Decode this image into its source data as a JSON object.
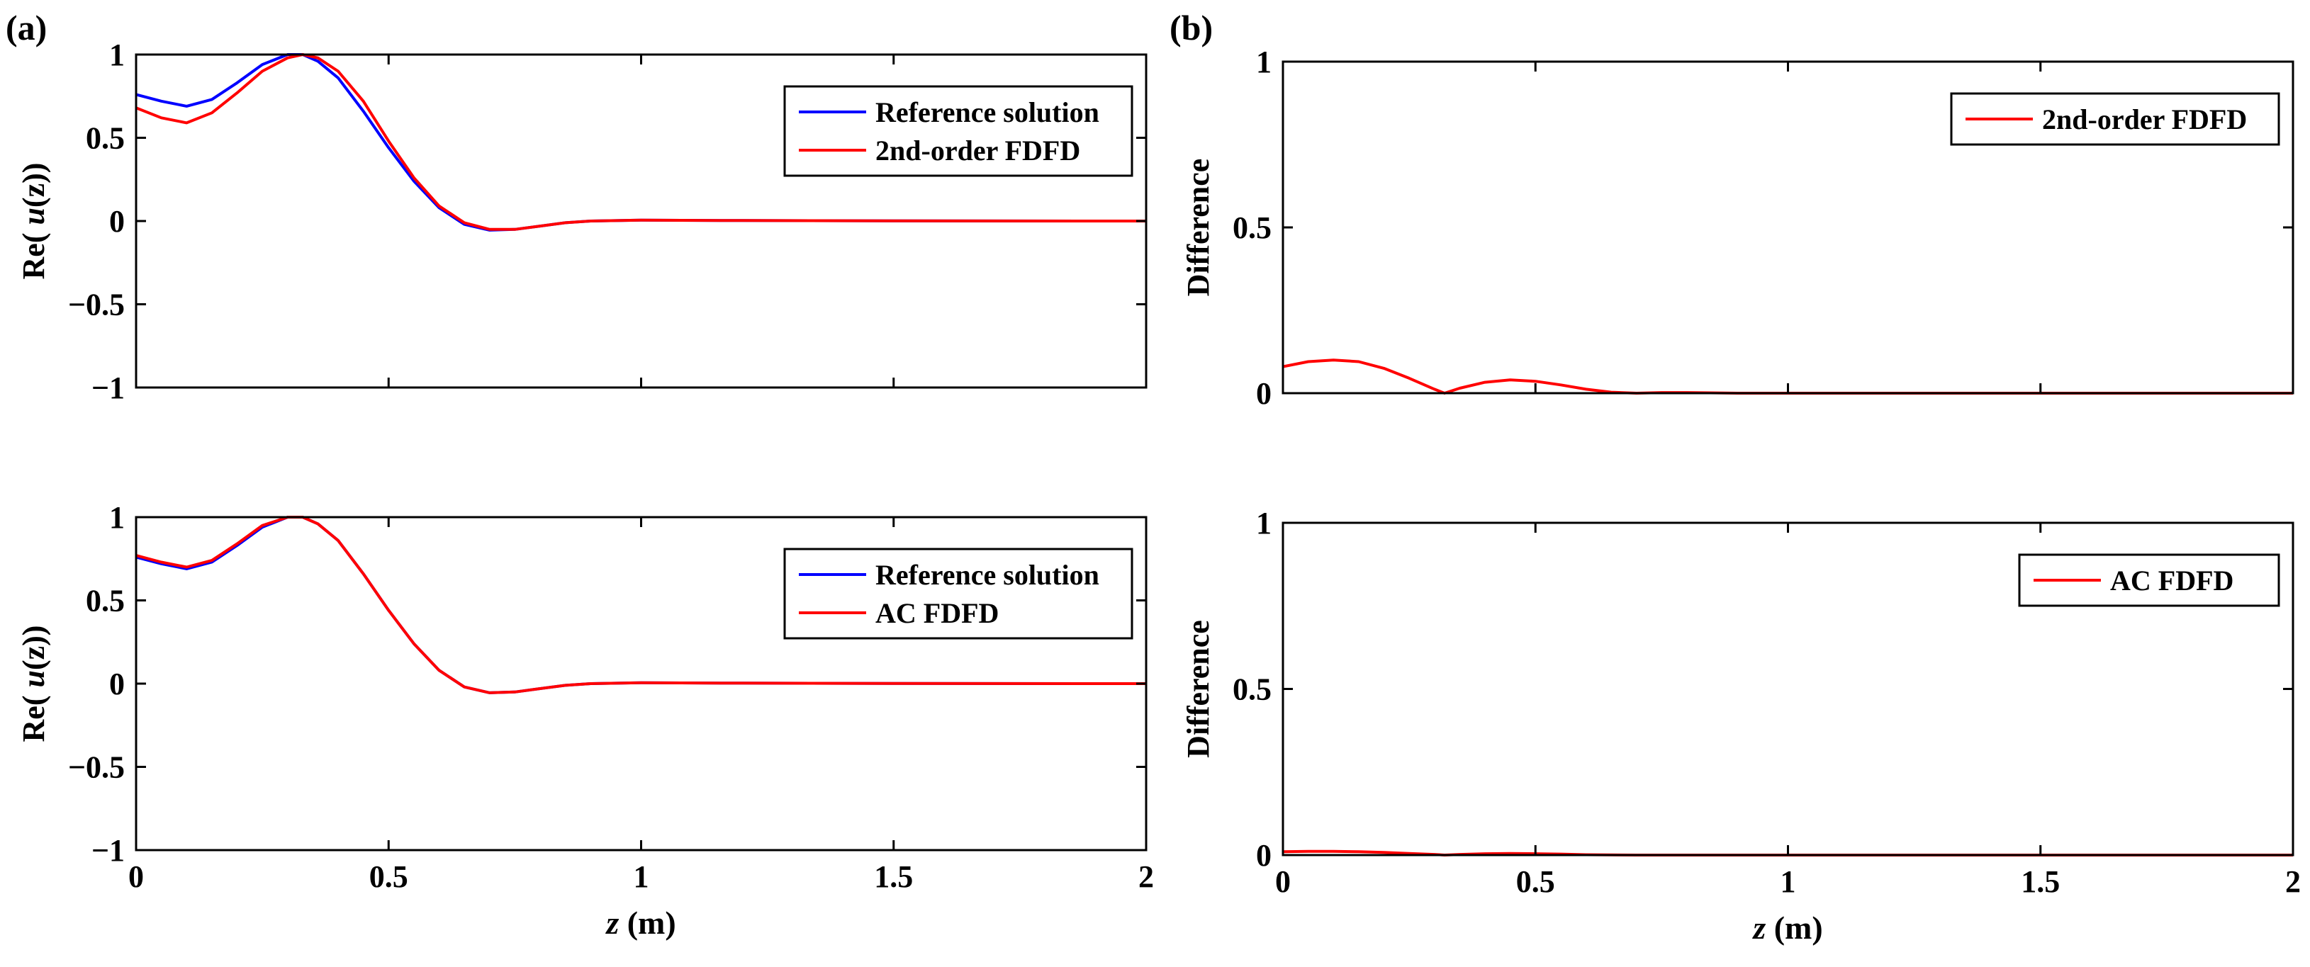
{
  "panel_labels": {
    "a": "(a)",
    "b": "(b)"
  },
  "axis_text": {
    "re_ylabel_prefix": "Re( ",
    "re_ylabel_func": "u",
    "re_ylabel_arg": "(z)",
    "re_ylabel_suffix": ")",
    "diff_ylabel": "Difference",
    "xlabel_var": "z",
    "xlabel_unit": " (m)"
  },
  "colors": {
    "reference": "#0000ff",
    "fdfd": "#ff0000",
    "axis": "#000000"
  },
  "chart_data": [
    {
      "id": "a-top",
      "type": "line",
      "xlim": [
        0,
        2
      ],
      "ylim": [
        -1,
        1
      ],
      "xticks": [
        0,
        0.5,
        1,
        1.5,
        2
      ],
      "xtick_labels": [],
      "yticks": [
        -1,
        -0.5,
        0,
        0.5,
        1
      ],
      "ytick_labels": [
        "−1",
        "−0.5",
        "0",
        "0.5",
        "1"
      ],
      "legend_position": "top-right",
      "series": [
        {
          "name": "Reference solution",
          "color": "#0000ff",
          "x": [
            0,
            0.05,
            0.1,
            0.15,
            0.2,
            0.25,
            0.3,
            0.33,
            0.36,
            0.4,
            0.45,
            0.5,
            0.55,
            0.6,
            0.65,
            0.7,
            0.75,
            0.8,
            0.85,
            0.9,
            1.0,
            1.2,
            1.5,
            2.0
          ],
          "y": [
            0.76,
            0.72,
            0.69,
            0.73,
            0.83,
            0.94,
            1.0,
            1.0,
            0.96,
            0.86,
            0.66,
            0.44,
            0.24,
            0.08,
            -0.02,
            -0.055,
            -0.05,
            -0.03,
            -0.01,
            0.0,
            0.005,
            0.003,
            0.001,
            0.0
          ]
        },
        {
          "name": "2nd-order FDFD",
          "color": "#ff0000",
          "x": [
            0,
            0.05,
            0.1,
            0.15,
            0.2,
            0.25,
            0.3,
            0.33,
            0.36,
            0.4,
            0.45,
            0.5,
            0.55,
            0.6,
            0.65,
            0.7,
            0.75,
            0.8,
            0.85,
            0.9,
            1.0,
            1.2,
            1.5,
            2.0
          ],
          "y": [
            0.68,
            0.62,
            0.59,
            0.65,
            0.77,
            0.9,
            0.98,
            1.0,
            0.98,
            0.9,
            0.72,
            0.48,
            0.26,
            0.09,
            -0.01,
            -0.05,
            -0.05,
            -0.03,
            -0.01,
            0.0,
            0.005,
            0.003,
            0.001,
            0.0
          ]
        }
      ]
    },
    {
      "id": "a-bottom",
      "type": "line",
      "xlim": [
        0,
        2
      ],
      "ylim": [
        -1,
        1
      ],
      "xticks": [
        0,
        0.5,
        1,
        1.5,
        2
      ],
      "xtick_labels": [
        "0",
        "0.5",
        "1",
        "1.5",
        "2"
      ],
      "yticks": [
        -1,
        -0.5,
        0,
        0.5,
        1
      ],
      "ytick_labels": [
        "−1",
        "−0.5",
        "0",
        "0.5",
        "1"
      ],
      "legend_position": "top-right",
      "series": [
        {
          "name": "Reference solution",
          "color": "#0000ff",
          "x": [
            0,
            0.05,
            0.1,
            0.15,
            0.2,
            0.25,
            0.3,
            0.33,
            0.36,
            0.4,
            0.45,
            0.5,
            0.55,
            0.6,
            0.65,
            0.7,
            0.75,
            0.8,
            0.85,
            0.9,
            1.0,
            1.2,
            1.5,
            2.0
          ],
          "y": [
            0.76,
            0.72,
            0.69,
            0.73,
            0.83,
            0.94,
            1.0,
            1.0,
            0.96,
            0.86,
            0.66,
            0.44,
            0.24,
            0.08,
            -0.02,
            -0.055,
            -0.05,
            -0.03,
            -0.01,
            0.0,
            0.005,
            0.003,
            0.001,
            0.0
          ]
        },
        {
          "name": "AC FDFD",
          "color": "#ff0000",
          "x": [
            0,
            0.05,
            0.1,
            0.15,
            0.2,
            0.25,
            0.3,
            0.33,
            0.36,
            0.4,
            0.45,
            0.5,
            0.55,
            0.6,
            0.65,
            0.7,
            0.75,
            0.8,
            0.85,
            0.9,
            1.0,
            1.2,
            1.5,
            2.0
          ],
          "y": [
            0.77,
            0.73,
            0.7,
            0.74,
            0.84,
            0.95,
            1.0,
            1.0,
            0.96,
            0.86,
            0.66,
            0.44,
            0.24,
            0.08,
            -0.02,
            -0.055,
            -0.05,
            -0.03,
            -0.01,
            0.0,
            0.005,
            0.003,
            0.001,
            0.0
          ]
        }
      ]
    },
    {
      "id": "b-top",
      "type": "line",
      "xlim": [
        0,
        2
      ],
      "ylim": [
        0,
        1
      ],
      "xticks": [
        0,
        0.5,
        1,
        1.5,
        2
      ],
      "xtick_labels": [],
      "yticks": [
        0,
        0.5,
        1
      ],
      "ytick_labels": [
        "0",
        "0.5",
        "1"
      ],
      "legend_position": "top-right",
      "series": [
        {
          "name": "2nd-order FDFD",
          "color": "#ff0000",
          "x": [
            0,
            0.05,
            0.1,
            0.15,
            0.2,
            0.25,
            0.3,
            0.32,
            0.35,
            0.4,
            0.45,
            0.5,
            0.55,
            0.6,
            0.65,
            0.7,
            0.75,
            0.8,
            0.9,
            1.0,
            1.5,
            2.0
          ],
          "y": [
            0.08,
            0.095,
            0.1,
            0.095,
            0.075,
            0.045,
            0.012,
            0.0,
            0.015,
            0.033,
            0.04,
            0.036,
            0.025,
            0.012,
            0.003,
            0.0,
            0.002,
            0.002,
            0.0,
            0.0,
            0.0,
            0.0
          ]
        }
      ]
    },
    {
      "id": "b-bottom",
      "type": "line",
      "xlim": [
        0,
        2
      ],
      "ylim": [
        0,
        1
      ],
      "xticks": [
        0,
        0.5,
        1,
        1.5,
        2
      ],
      "xtick_labels": [
        "0",
        "0.5",
        "1",
        "1.5",
        "2"
      ],
      "yticks": [
        0,
        0.5,
        1
      ],
      "ytick_labels": [
        "0",
        "0.5",
        "1"
      ],
      "legend_position": "top-right",
      "series": [
        {
          "name": "AC FDFD",
          "color": "#ff0000",
          "x": [
            0,
            0.05,
            0.1,
            0.15,
            0.2,
            0.25,
            0.3,
            0.32,
            0.35,
            0.4,
            0.45,
            0.5,
            0.55,
            0.6,
            0.7,
            0.8,
            1.0,
            1.5,
            2.0
          ],
          "y": [
            0.01,
            0.011,
            0.011,
            0.01,
            0.008,
            0.005,
            0.002,
            0.0,
            0.002,
            0.004,
            0.005,
            0.004,
            0.003,
            0.001,
            0.0,
            0.0,
            0.0,
            0.0,
            0.0
          ]
        }
      ]
    }
  ]
}
